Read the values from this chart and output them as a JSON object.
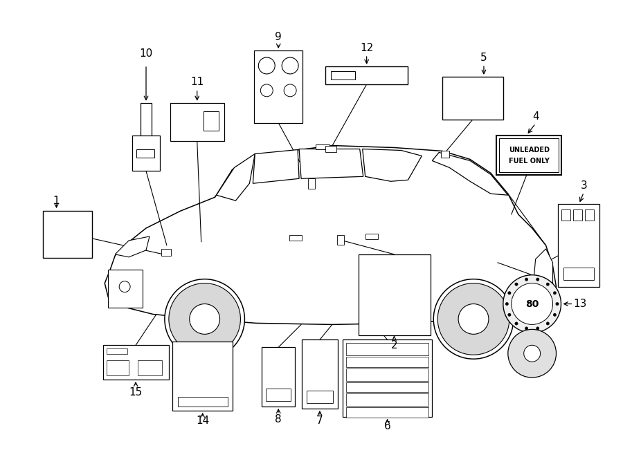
{
  "bg_color": "#ffffff",
  "fig_width": 9.0,
  "fig_height": 6.61,
  "dpi": 100,
  "lw_car": 1.1,
  "lw_item": 0.9,
  "label_fontsize": 11
}
